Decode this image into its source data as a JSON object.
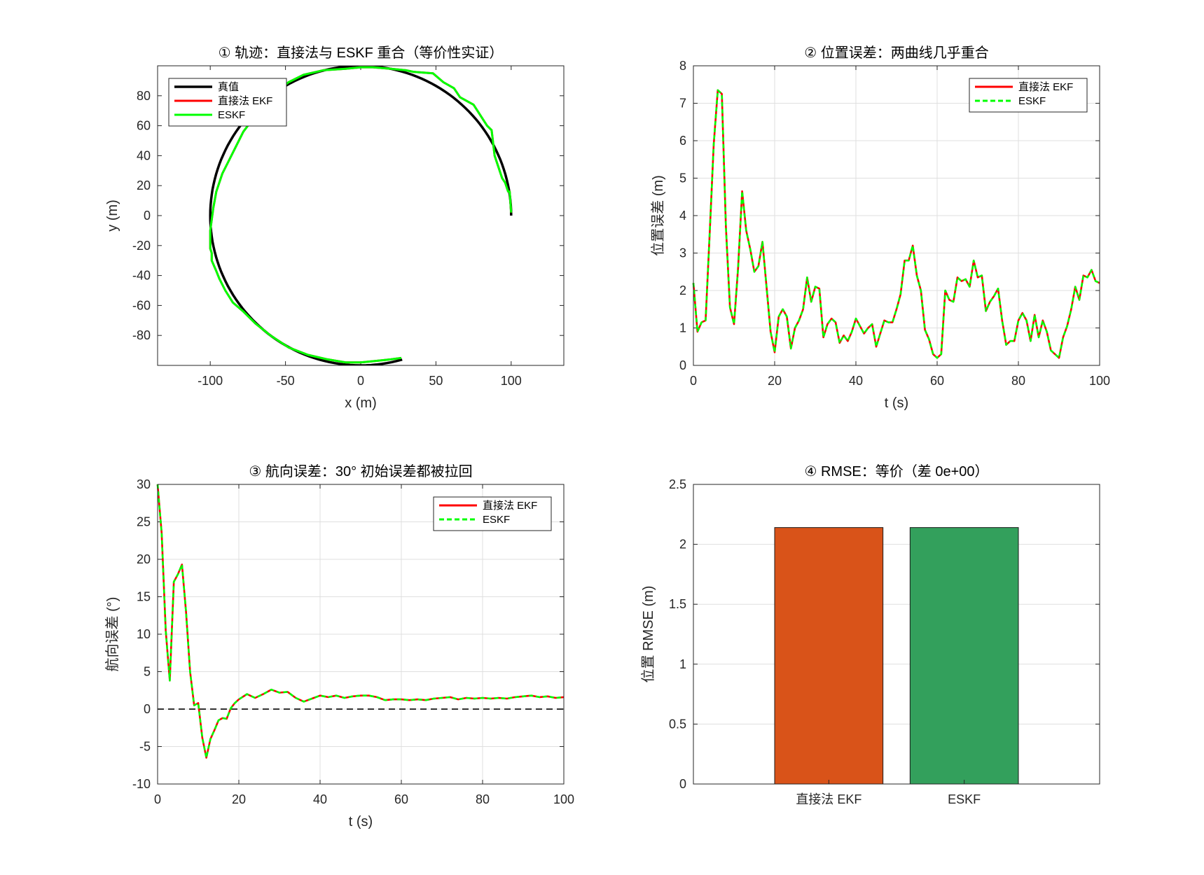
{
  "chart_data": [
    {
      "id": "traj",
      "type": "line",
      "title": "① 轨迹：直接法与 ESKF 重合（等价性实证）",
      "xlabel": "x (m)",
      "ylabel": "y (m)",
      "xlim": [
        -135,
        135
      ],
      "ylim": [
        -100,
        100
      ],
      "xticks": [
        -100,
        -50,
        0,
        50,
        100
      ],
      "xtick_labels": [
        "-100",
        "-50",
        "0",
        "50",
        "100"
      ],
      "yticks": [
        -80,
        -60,
        -40,
        -20,
        0,
        20,
        40,
        60,
        80
      ],
      "ytick_labels": [
        "-80",
        "-60",
        "-40",
        "-20",
        "0",
        "20",
        "40",
        "60",
        "80"
      ],
      "grid": false,
      "legend": "top-left",
      "truth": {
        "name": "真值",
        "color": "#000000",
        "shape": "circle",
        "radius": 100,
        "start_deg": 0,
        "end_deg": 286
      },
      "series": [
        {
          "name": "直接法 EKF",
          "color": "#ff0000",
          "dash": "solid",
          "x": [
            100,
            99,
            98,
            96,
            94,
            89,
            87,
            84,
            75,
            66,
            62,
            55,
            48,
            35,
            30,
            20,
            8,
            0,
            -10,
            -25,
            -38,
            -48,
            -58,
            -65,
            -72,
            -78,
            -84,
            -88,
            -92,
            -96,
            -98,
            -100,
            -100,
            -99,
            -99,
            -96,
            -94,
            -90,
            -85,
            -78,
            -70,
            -60,
            -48,
            -35,
            -22,
            -10,
            0,
            10,
            20,
            27
          ],
          "y": [
            2,
            16,
            16,
            22,
            25,
            40,
            57,
            60,
            74,
            79,
            85,
            89,
            95,
            96,
            97,
            98,
            99,
            99,
            98,
            97,
            94,
            89,
            81,
            73,
            64,
            56,
            44,
            36,
            28,
            16,
            5,
            -10,
            -22,
            -25,
            -30,
            -37,
            -42,
            -50,
            -58,
            -64,
            -72,
            -80,
            -88,
            -93,
            -96,
            -98,
            -98,
            -97,
            -96,
            -95
          ]
        },
        {
          "name": "ESKF",
          "color": "#00ff00",
          "dash": "solid",
          "x": [
            100,
            99,
            98,
            96,
            94,
            89,
            87,
            84,
            75,
            66,
            62,
            55,
            48,
            35,
            30,
            20,
            8,
            0,
            -10,
            -25,
            -38,
            -48,
            -58,
            -65,
            -72,
            -78,
            -84,
            -88,
            -92,
            -96,
            -98,
            -100,
            -100,
            -99,
            -99,
            -96,
            -94,
            -90,
            -85,
            -78,
            -70,
            -60,
            -48,
            -35,
            -22,
            -10,
            0,
            10,
            20,
            27
          ],
          "y": [
            2,
            16,
            16,
            22,
            25,
            40,
            57,
            60,
            74,
            79,
            85,
            89,
            95,
            96,
            97,
            98,
            99,
            99,
            98,
            97,
            94,
            89,
            81,
            73,
            64,
            56,
            44,
            36,
            28,
            16,
            5,
            -10,
            -22,
            -25,
            -30,
            -37,
            -42,
            -50,
            -58,
            -64,
            -72,
            -80,
            -88,
            -93,
            -96,
            -98,
            -98,
            -97,
            -96,
            -95
          ]
        }
      ]
    },
    {
      "id": "pos",
      "type": "line",
      "title": "② 位置误差：两曲线几乎重合",
      "xlabel": "t (s)",
      "ylabel": "位置误差 (m)",
      "xlim": [
        0,
        100
      ],
      "ylim": [
        0,
        8
      ],
      "xticks": [
        0,
        20,
        40,
        60,
        80,
        100
      ],
      "xtick_labels": [
        "0",
        "20",
        "40",
        "60",
        "80",
        "100"
      ],
      "yticks": [
        0,
        1,
        2,
        3,
        4,
        5,
        6,
        7,
        8
      ],
      "ytick_labels": [
        "0",
        "1",
        "2",
        "3",
        "4",
        "5",
        "6",
        "7",
        "8"
      ],
      "grid": true,
      "legend": "top-right",
      "x": [
        0,
        1,
        2,
        3,
        4,
        5,
        6,
        7,
        8,
        9,
        10,
        11,
        12,
        13,
        14,
        15,
        16,
        17,
        18,
        19,
        20,
        21,
        22,
        23,
        24,
        25,
        26,
        27,
        28,
        29,
        30,
        31,
        32,
        33,
        34,
        35,
        36,
        37,
        38,
        39,
        40,
        41,
        42,
        43,
        44,
        45,
        46,
        47,
        48,
        49,
        50,
        51,
        52,
        53,
        54,
        55,
        56,
        57,
        58,
        59,
        60,
        61,
        62,
        63,
        64,
        65,
        66,
        67,
        68,
        69,
        70,
        71,
        72,
        73,
        74,
        75,
        76,
        77,
        78,
        79,
        80,
        81,
        82,
        83,
        84,
        85,
        86,
        87,
        88,
        89,
        90,
        91,
        92,
        93,
        94,
        95,
        96,
        97,
        98,
        99,
        100
      ],
      "series": [
        {
          "name": "直接法 EKF",
          "color": "#ff0000",
          "dash": "solid",
          "y": [
            2.2,
            0.9,
            1.15,
            1.2,
            3.5,
            5.9,
            7.35,
            7.25,
            3.7,
            1.55,
            1.1,
            2.6,
            4.65,
            3.6,
            3.1,
            2.5,
            2.65,
            3.3,
            2.1,
            0.9,
            0.35,
            1.3,
            1.5,
            1.3,
            0.45,
            1.0,
            1.2,
            1.5,
            2.35,
            1.7,
            2.1,
            2.05,
            0.75,
            1.1,
            1.25,
            1.15,
            0.6,
            0.8,
            0.65,
            0.9,
            1.25,
            1.05,
            0.85,
            1.0,
            1.1,
            0.5,
            0.85,
            1.2,
            1.15,
            1.15,
            1.5,
            1.9,
            2.8,
            2.8,
            3.2,
            2.4,
            2.0,
            0.95,
            0.7,
            0.3,
            0.2,
            0.3,
            2.0,
            1.75,
            1.7,
            2.35,
            2.25,
            2.3,
            2.1,
            2.8,
            2.35,
            2.4,
            1.45,
            1.7,
            1.85,
            2.05,
            1.2,
            0.55,
            0.65,
            0.65,
            1.2,
            1.4,
            1.2,
            0.65,
            1.35,
            0.75,
            1.2,
            0.9,
            0.4,
            0.3,
            0.2,
            0.75,
            1.05,
            1.5,
            2.1,
            1.75,
            2.4,
            2.35,
            2.55,
            2.25,
            2.2
          ]
        },
        {
          "name": "ESKF",
          "color": "#00ff00",
          "dash": "dashed",
          "y": [
            2.2,
            0.9,
            1.15,
            1.2,
            3.5,
            5.9,
            7.35,
            7.25,
            3.7,
            1.55,
            1.1,
            2.6,
            4.65,
            3.6,
            3.1,
            2.5,
            2.65,
            3.3,
            2.1,
            0.9,
            0.35,
            1.3,
            1.5,
            1.3,
            0.45,
            1.0,
            1.2,
            1.5,
            2.35,
            1.7,
            2.1,
            2.05,
            0.75,
            1.1,
            1.25,
            1.15,
            0.6,
            0.8,
            0.65,
            0.9,
            1.25,
            1.05,
            0.85,
            1.0,
            1.1,
            0.5,
            0.85,
            1.2,
            1.15,
            1.15,
            1.5,
            1.9,
            2.8,
            2.8,
            3.2,
            2.4,
            2.0,
            0.95,
            0.7,
            0.3,
            0.2,
            0.3,
            2.0,
            1.75,
            1.7,
            2.35,
            2.25,
            2.3,
            2.1,
            2.8,
            2.35,
            2.4,
            1.45,
            1.7,
            1.85,
            2.05,
            1.2,
            0.55,
            0.65,
            0.65,
            1.2,
            1.4,
            1.2,
            0.65,
            1.35,
            0.75,
            1.2,
            0.9,
            0.4,
            0.3,
            0.2,
            0.75,
            1.05,
            1.5,
            2.1,
            1.75,
            2.4,
            2.35,
            2.55,
            2.25,
            2.2
          ]
        }
      ]
    },
    {
      "id": "head",
      "type": "line",
      "title": "③ 航向误差：30° 初始误差都被拉回",
      "xlabel": "t (s)",
      "ylabel": "航向误差 (°)",
      "xlim": [
        0,
        100
      ],
      "ylim": [
        -10,
        30
      ],
      "xticks": [
        0,
        20,
        40,
        60,
        80,
        100
      ],
      "xtick_labels": [
        "0",
        "20",
        "40",
        "60",
        "80",
        "100"
      ],
      "yticks": [
        -10,
        -5,
        0,
        5,
        10,
        15,
        20,
        25,
        30
      ],
      "ytick_labels": [
        "-10",
        "-5",
        "0",
        "5",
        "10",
        "15",
        "20",
        "25",
        "30"
      ],
      "grid": true,
      "legend": "top-right",
      "reference_line": {
        "y": 0,
        "color": "#333333",
        "dash": "dashed"
      },
      "x": [
        0,
        1,
        2,
        3,
        4,
        5,
        6,
        7,
        8,
        9,
        10,
        11,
        12,
        13,
        14,
        15,
        16,
        17,
        18,
        19,
        20,
        22,
        24,
        26,
        28,
        30,
        32,
        34,
        36,
        38,
        40,
        42,
        44,
        46,
        48,
        50,
        52,
        54,
        56,
        58,
        60,
        62,
        64,
        66,
        68,
        70,
        72,
        74,
        76,
        78,
        80,
        82,
        84,
        86,
        88,
        90,
        92,
        94,
        96,
        98,
        100
      ],
      "series": [
        {
          "name": "直接法 EKF",
          "color": "#ff0000",
          "dash": "solid",
          "y": [
            30,
            23.5,
            10.5,
            3.8,
            17.0,
            18.0,
            19.3,
            13.0,
            5.0,
            0.5,
            0.8,
            -3.8,
            -6.5,
            -4.0,
            -2.8,
            -1.5,
            -1.2,
            -1.3,
            0.1,
            0.8,
            1.3,
            2.0,
            1.5,
            2.0,
            2.6,
            2.2,
            2.3,
            1.5,
            1.0,
            1.4,
            1.8,
            1.6,
            1.8,
            1.5,
            1.7,
            1.8,
            1.8,
            1.6,
            1.2,
            1.3,
            1.3,
            1.2,
            1.3,
            1.2,
            1.4,
            1.5,
            1.6,
            1.3,
            1.5,
            1.4,
            1.5,
            1.4,
            1.5,
            1.4,
            1.6,
            1.7,
            1.8,
            1.6,
            1.7,
            1.5,
            1.6
          ]
        },
        {
          "name": "ESKF",
          "color": "#00ff00",
          "dash": "dashed",
          "y": [
            30,
            23.5,
            10.5,
            3.8,
            17.0,
            18.0,
            19.3,
            13.0,
            5.0,
            0.5,
            0.8,
            -3.8,
            -6.5,
            -4.0,
            -2.8,
            -1.5,
            -1.2,
            -1.3,
            0.1,
            0.8,
            1.3,
            2.0,
            1.5,
            2.0,
            2.6,
            2.2,
            2.3,
            1.5,
            1.0,
            1.4,
            1.8,
            1.6,
            1.8,
            1.5,
            1.7,
            1.8,
            1.8,
            1.6,
            1.2,
            1.3,
            1.3,
            1.2,
            1.3,
            1.2,
            1.4,
            1.5,
            1.6,
            1.3,
            1.5,
            1.4,
            1.5,
            1.4,
            1.5,
            1.4,
            1.6,
            1.7,
            1.8,
            1.6,
            1.7,
            1.5,
            1.6
          ]
        }
      ]
    },
    {
      "id": "rmse",
      "type": "bar",
      "title": "④ RMSE：等价（差 0e+00）",
      "xlabel": "",
      "ylabel": "位置 RMSE (m)",
      "ylim": [
        0,
        2.5
      ],
      "yticks": [
        0,
        0.5,
        1,
        1.5,
        2,
        2.5
      ],
      "ytick_labels": [
        "0",
        "0.5",
        "1",
        "1.5",
        "2",
        "2.5"
      ],
      "grid": true,
      "categories": [
        "直接法 EKF",
        "ESKF"
      ],
      "values": [
        2.14,
        2.14
      ],
      "colors": [
        "#d95319",
        "#33a05c"
      ]
    }
  ]
}
